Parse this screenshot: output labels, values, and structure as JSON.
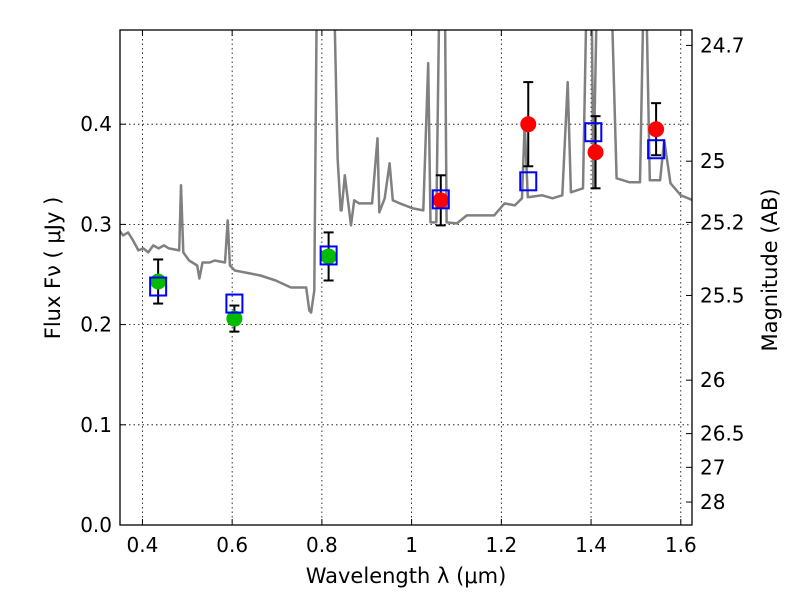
{
  "chart_data": {
    "type": "scatter",
    "title": "",
    "xlabel": "Wavelength  λ (μm)",
    "ylabel": "Flux  Fν  ( μJy )",
    "ylabel_right": "Magnitude (AB)",
    "xlim": [
      0.35,
      1.625
    ],
    "ylim": [
      0.0,
      0.494
    ],
    "grid": true,
    "x_ticks": [
      0.4,
      0.6,
      0.8,
      1.0,
      1.2,
      1.4,
      1.6
    ],
    "x_tick_labels": [
      "0.4",
      "0.6",
      "0.8",
      "1",
      "1.2",
      "1.4",
      "1.6"
    ],
    "y_ticks": [
      0.0,
      0.1,
      0.2,
      0.3,
      0.4
    ],
    "y_tick_labels": [
      "0.0",
      "0.1",
      "0.2",
      "0.3",
      "0.4"
    ],
    "right_ticks_mag": [
      24.7,
      25,
      25.2,
      25.5,
      26,
      26.5,
      27,
      28
    ],
    "right_tick_labels": [
      "24.7",
      "25",
      "25.2",
      "25.5",
      "26",
      "26.5",
      "27",
      "28"
    ],
    "ab_zeropoint_ujy": 23.9,
    "series": [
      {
        "name": "model spectrum",
        "kind": "line",
        "color": "#808080",
        "x": [
          0.345,
          0.357,
          0.368,
          0.379,
          0.391,
          0.402,
          0.413,
          0.424,
          0.436,
          0.448,
          0.459,
          0.482,
          0.486,
          0.491,
          0.504,
          0.522,
          0.527,
          0.534,
          0.55,
          0.561,
          0.584,
          0.59,
          0.595,
          0.606,
          0.629,
          0.663,
          0.697,
          0.731,
          0.765,
          0.772,
          0.776,
          0.783,
          0.79,
          0.824,
          0.835,
          0.842,
          0.844,
          0.851,
          0.865,
          0.872,
          0.883,
          0.912,
          0.924,
          0.928,
          0.94,
          0.951,
          0.958,
          0.974,
          1.003,
          1.026,
          1.037,
          1.042,
          1.055,
          1.064,
          1.073,
          1.078,
          1.101,
          1.123,
          1.184,
          1.207,
          1.23,
          1.246,
          1.252,
          1.259,
          1.291,
          1.314,
          1.336,
          1.348,
          1.355,
          1.382,
          1.393,
          1.4,
          1.405,
          1.416,
          1.441,
          1.457,
          1.486,
          1.509,
          1.52,
          1.531,
          1.554,
          1.563,
          1.577,
          1.6,
          1.638
        ],
        "y": [
          0.296,
          0.289,
          0.292,
          0.284,
          0.274,
          0.276,
          0.272,
          0.279,
          0.276,
          0.279,
          0.276,
          0.274,
          0.339,
          0.272,
          0.264,
          0.259,
          0.246,
          0.262,
          0.262,
          0.264,
          0.262,
          0.304,
          0.259,
          0.254,
          0.252,
          0.249,
          0.244,
          0.237,
          0.237,
          0.214,
          0.212,
          0.234,
          0.6,
          0.6,
          0.366,
          0.314,
          0.314,
          0.349,
          0.299,
          0.324,
          0.321,
          0.321,
          0.386,
          0.312,
          0.326,
          0.361,
          0.324,
          0.321,
          0.316,
          0.314,
          0.461,
          0.302,
          0.302,
          0.6,
          0.6,
          0.302,
          0.301,
          0.309,
          0.309,
          0.321,
          0.319,
          0.326,
          0.401,
          0.327,
          0.329,
          0.326,
          0.329,
          0.442,
          0.332,
          0.336,
          0.6,
          0.6,
          0.336,
          0.6,
          0.6,
          0.346,
          0.342,
          0.342,
          0.6,
          0.344,
          0.344,
          0.384,
          0.341,
          0.329,
          0.322
        ]
      },
      {
        "name": "photometry (optical)",
        "kind": "points",
        "color": "#00bb00",
        "x": [
          0.435,
          0.605,
          0.815
        ],
        "y": [
          0.243,
          0.206,
          0.268
        ],
        "yerr": [
          0.022,
          0.013,
          0.024
        ]
      },
      {
        "name": "photometry (near-IR)",
        "kind": "points",
        "color": "#ff0000",
        "x": [
          1.065,
          1.26,
          1.41,
          1.545
        ],
        "y": [
          0.324,
          0.4,
          0.372,
          0.395
        ],
        "yerr": [
          0.025,
          0.042,
          0.036,
          0.026
        ]
      },
      {
        "name": "model synthetic photometry",
        "kind": "squares",
        "color": "#0000ff",
        "x": [
          0.435,
          0.605,
          0.815,
          1.065,
          1.26,
          1.405,
          1.545
        ],
        "y": [
          0.238,
          0.221,
          0.269,
          0.325,
          0.343,
          0.392,
          0.375
        ]
      }
    ]
  }
}
